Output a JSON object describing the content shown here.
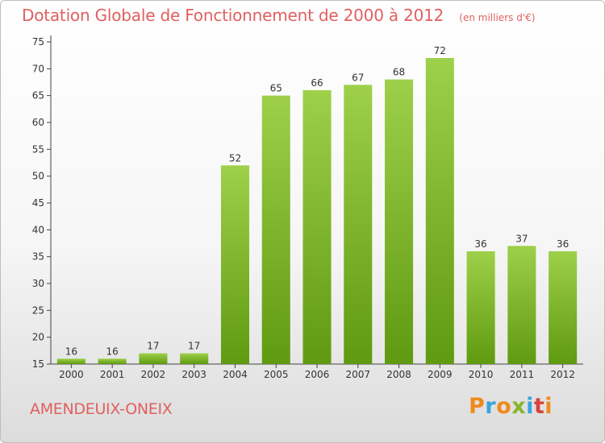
{
  "header": {
    "title": "Dotation Globale de Fonctionnement de 2000 à 2012",
    "subtitle": "(en milliers d'€)"
  },
  "footer": {
    "place": "AMENDEUIX-ONEIX",
    "logo_text": "Proxiti",
    "logo_colors": [
      "#f08a1c",
      "#3aa3dc",
      "#f08a1c",
      "#88b52a",
      "#3aa3dc",
      "#d9413b",
      "#f08a1c"
    ]
  },
  "chart_data": {
    "type": "bar",
    "categories": [
      "2000",
      "2001",
      "2002",
      "2003",
      "2004",
      "2005",
      "2006",
      "2007",
      "2008",
      "2009",
      "2010",
      "2011",
      "2012"
    ],
    "values": [
      16,
      16,
      17,
      17,
      52,
      65,
      66,
      67,
      68,
      72,
      36,
      37,
      36
    ],
    "title": "Dotation Globale de Fonctionnement de 2000 à 2012",
    "subtitle": "(en milliers d'€)",
    "xlabel": "",
    "ylabel": "",
    "ylim": [
      15,
      75
    ],
    "yticks": [
      15,
      20,
      25,
      30,
      35,
      40,
      45,
      50,
      55,
      60,
      65,
      70,
      75
    ],
    "grid": false,
    "bar_color_light": "#9ed04a",
    "bar_color_dark": "#5f9a10"
  }
}
